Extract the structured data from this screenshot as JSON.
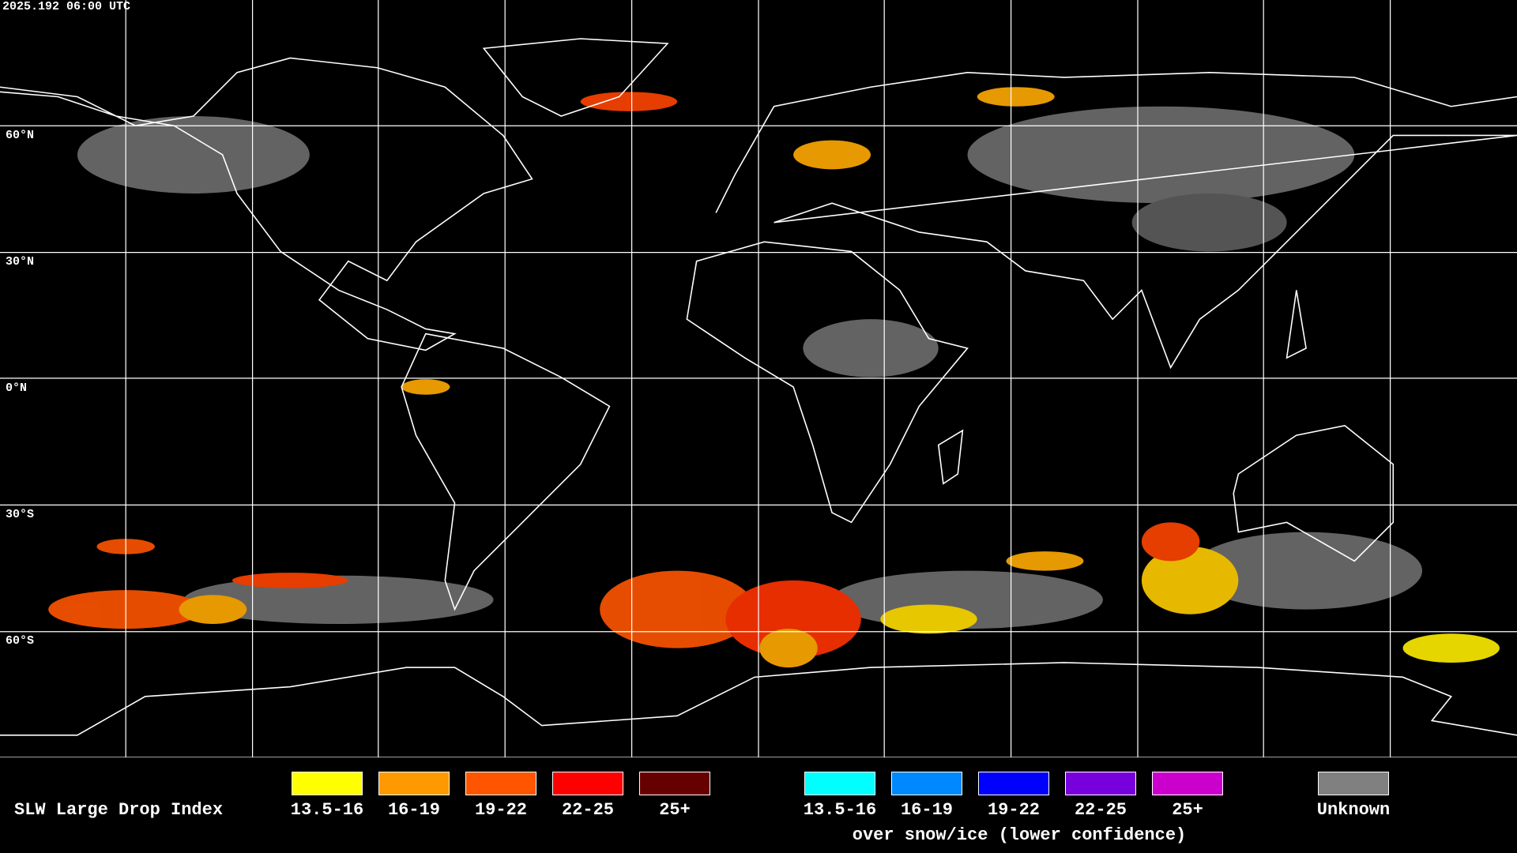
{
  "header": {
    "timestamp": "2025.192 06:00 UTC"
  },
  "latitude_labels": [
    "60°N",
    "30°N",
    "0°N",
    "30°S",
    "60°S"
  ],
  "legend": {
    "title": "SLW Large Drop Index",
    "items": [
      {
        "label": "13.5-16",
        "color": "#ffff00"
      },
      {
        "label": "16-19",
        "color": "#ff9900"
      },
      {
        "label": "19-22",
        "color": "#ff5500"
      },
      {
        "label": "22-25",
        "color": "#ff0000"
      },
      {
        "label": "25+",
        "color": "#660000"
      }
    ],
    "snow_ice_items": [
      {
        "label": "13.5-16",
        "color": "#00ffff"
      },
      {
        "label": "16-19",
        "color": "#0088ff"
      },
      {
        "label": "19-22",
        "color": "#0000ff"
      },
      {
        "label": "22-25",
        "color": "#7700dd"
      },
      {
        "label": "25+",
        "color": "#cc00cc"
      }
    ],
    "snow_ice_caption": "over snow/ice (lower confidence)",
    "unknown": {
      "label": "Unknown",
      "color": "#808080"
    }
  }
}
